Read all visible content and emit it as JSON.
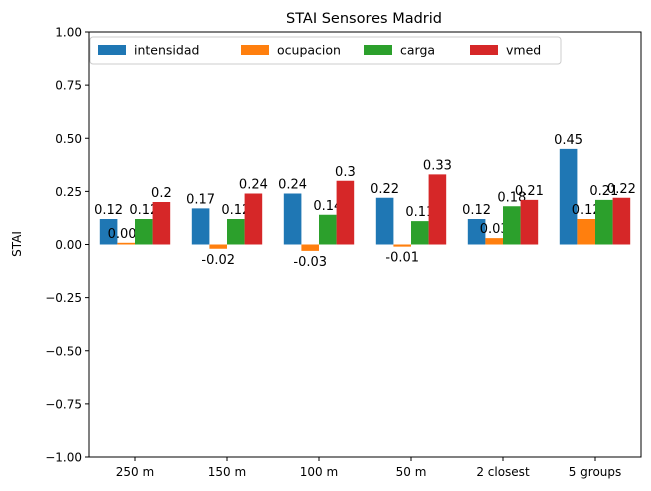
{
  "chart_data": {
    "type": "bar",
    "title": "STAI Sensores Madrid",
    "xlabel": "",
    "ylabel": "STAI",
    "ylim": [
      -1.0,
      1.0
    ],
    "yticks": [
      -1.0,
      -0.75,
      -0.5,
      -0.25,
      0.0,
      0.25,
      0.5,
      0.75,
      1.0
    ],
    "ytick_labels": [
      "−1.00",
      "−0.75",
      "−0.50",
      "−0.25",
      "0.00",
      "0.25",
      "0.50",
      "0.75",
      "1.00"
    ],
    "categories": [
      "250 m",
      "150 m",
      "100 m",
      "50 m",
      "2 closest",
      "5 groups"
    ],
    "legend_position": "top-left",
    "grid": false,
    "series": [
      {
        "name": "intensidad",
        "color": "#1f77b4",
        "values": [
          0.12,
          0.17,
          0.24,
          0.22,
          0.12,
          0.45
        ],
        "labels": [
          "0.12",
          "0.17",
          "0.24",
          "0.22",
          "0.12",
          "0.45"
        ]
      },
      {
        "name": "ocupacion",
        "color": "#ff7f0e",
        "values": [
          0.008,
          -0.02,
          -0.03,
          -0.01,
          0.03,
          0.12
        ],
        "labels": [
          "0.008",
          "-0.02",
          "-0.03",
          "-0.01",
          "0.03",
          "0.12"
        ]
      },
      {
        "name": "carga",
        "color": "#2ca02c",
        "values": [
          0.12,
          0.12,
          0.14,
          0.11,
          0.18,
          0.21
        ],
        "labels": [
          "0.12",
          "0.12",
          "0.14",
          "0.11",
          "0.18",
          "0.21"
        ]
      },
      {
        "name": "vmed",
        "color": "#d62728",
        "values": [
          0.2,
          0.24,
          0.3,
          0.33,
          0.21,
          0.22
        ],
        "labels": [
          "0.2",
          "0.24",
          "0.3",
          "0.33",
          "0.21",
          "0.22"
        ]
      }
    ]
  }
}
